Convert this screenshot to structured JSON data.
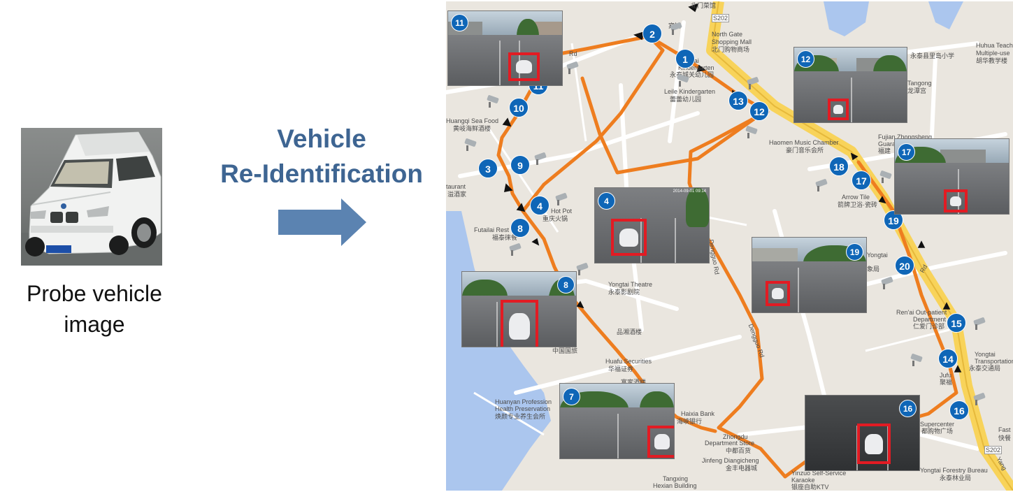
{
  "probe": {
    "caption_line1": "Probe vehicle",
    "caption_line2": "image",
    "plate": "AA·PP322"
  },
  "title": {
    "line1": "Vehicle",
    "line2": "Re-Identification"
  },
  "colors": {
    "title": "#3e6592",
    "arrow": "#5b83b1",
    "route": "#ee7d1f",
    "badge": "#0f66b7",
    "highlight": "#e21b23"
  },
  "map": {
    "labels": [
      "北门菜馆",
      "North Gate",
      "Shopping Mall",
      "北门购物商场",
      "Yongtai",
      "Kindergarten",
      "永泰城关幼儿园",
      "Leile Kindergarten",
      "蕾蕾幼儿园",
      "Huangqi Sea Food",
      "黄岐海鲜酒楼",
      "taurant",
      "溢酒家",
      "Hot Pot",
      "重庆火锅",
      "Futailai Rest",
      "福泰徕餐",
      "Yongtai Theatre",
      "永泰影剧院",
      "品湘酒楼",
      "中国国旅",
      "Huafu Securities",
      "华福证券",
      "富家酒楼",
      "Huanyan Profession",
      "Health Preservation",
      "焕颜专业养生会所",
      "Haixia Bank",
      "海峡银行",
      "Zhongdu",
      "Department Store",
      "中都百货",
      "Jinfeng Diangicheng",
      "金丰电器城",
      "Tangxing",
      "Hexian Building",
      "Yinzuo Self-Service",
      "Karaoke",
      "银座自助KTV",
      "Haomen Music Chamber",
      "豪门音乐会所",
      "Fujian Zhongsheng",
      "Guarantee",
      "福建",
      "Arrow Tile",
      "箭牌卫浴·瓷砖",
      "Yongtai",
      "象局",
      "Ren'ai Out-patient",
      "Department",
      "仁爱门诊部",
      "Yongtai",
      "Transportation",
      "永泰交通局",
      "Jufu",
      "聚福",
      "Supercenter",
      "都购物广场",
      "Yongtai Forestry Bureau",
      "永泰林业局",
      "Huhua Teach",
      "Multiple-use",
      "胡华教学楼",
      "永泰县里岛小学",
      "Tangong",
      "龙潭宫",
      "Dengguo Rd",
      "Dengguo Rd",
      "Fast",
      "快餐",
      "S202",
      "S202",
      "Yang",
      "宾馆",
      "Rd",
      "Rd"
    ],
    "markers": [
      "2",
      "1",
      "11",
      "10",
      "3",
      "9",
      "4",
      "8",
      "8",
      "13",
      "12",
      "18",
      "17",
      "19",
      "20",
      "15",
      "14",
      "16"
    ],
    "snapshots": [
      "11",
      "12",
      "4",
      "17",
      "19",
      "8",
      "7",
      "16"
    ],
    "timestamp": "2014-09-01 09:14"
  }
}
